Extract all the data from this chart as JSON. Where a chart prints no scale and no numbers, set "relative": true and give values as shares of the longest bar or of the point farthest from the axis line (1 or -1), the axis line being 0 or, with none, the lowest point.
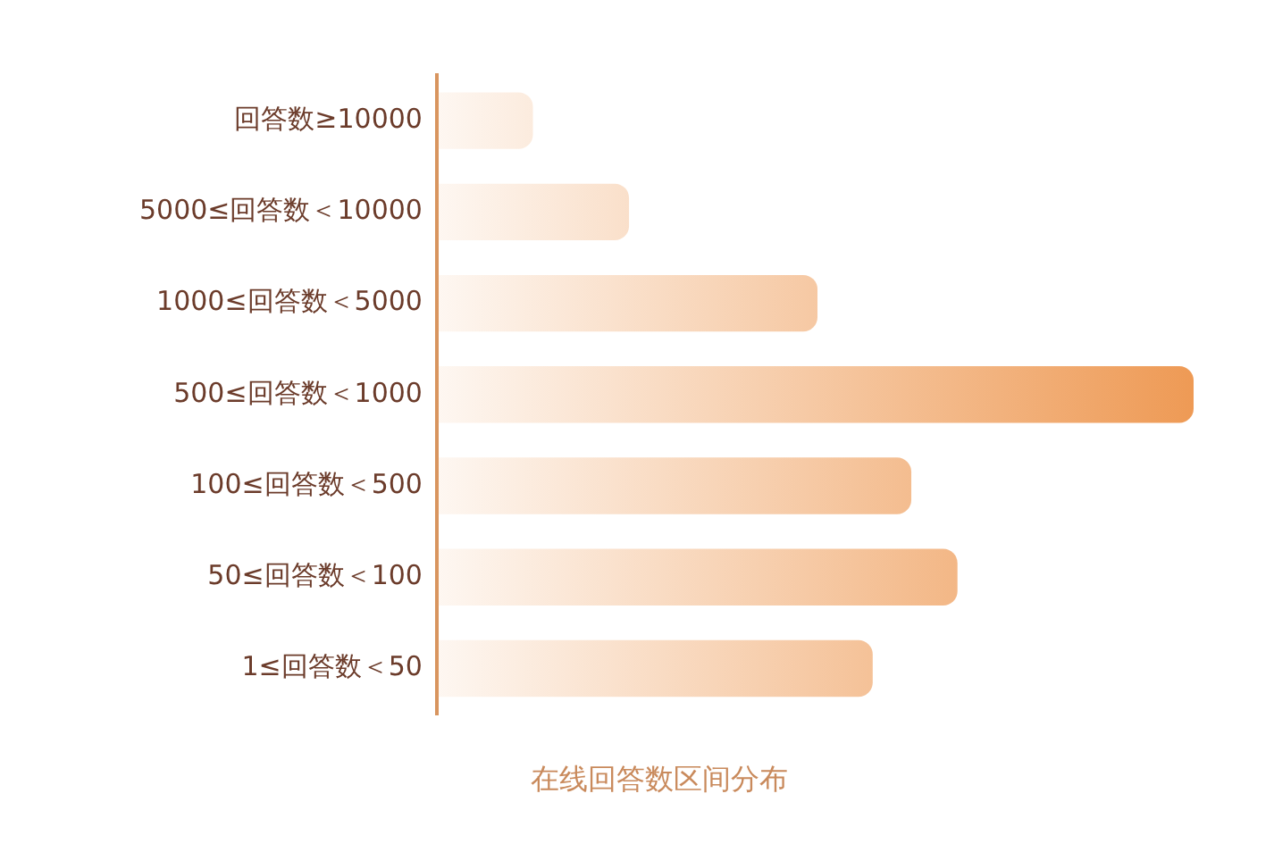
{
  "chart_data": {
    "type": "bar",
    "orientation": "horizontal",
    "relative": true,
    "title": "在线回答数区间分布",
    "categories": [
      "回答数≥10000",
      "5000≤回答数＜10000",
      "1000≤回答数＜5000",
      "500≤回答数＜1000",
      "100≤回答数＜500",
      "50≤回答数＜100",
      "1≤回答数＜50"
    ],
    "values": [
      0.127,
      0.254,
      0.503,
      1,
      0.627,
      0.688,
      0.576
    ],
    "color": "#ee9a55",
    "legend": false
  }
}
